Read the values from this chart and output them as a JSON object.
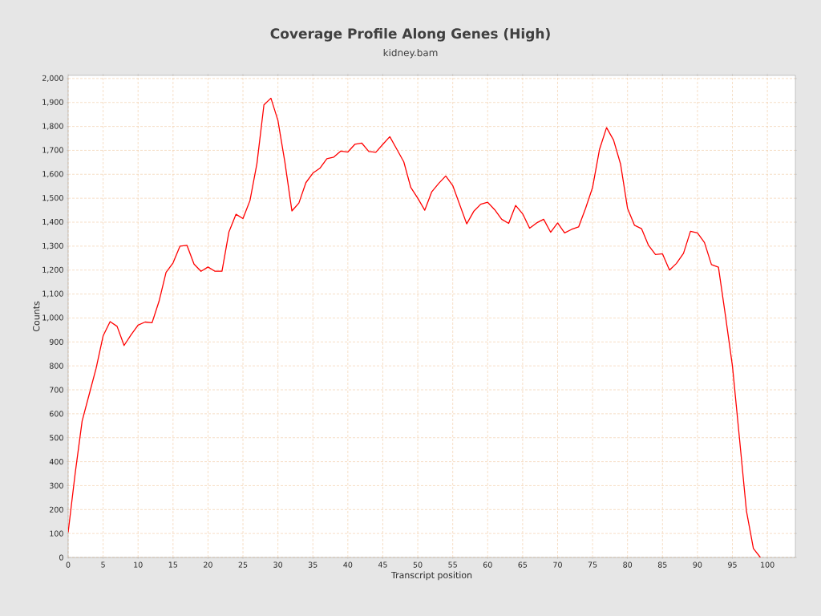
{
  "chart_data": {
    "type": "line",
    "title": "Coverage Profile Along Genes (High)",
    "subtitle": "kidney.bam",
    "xlabel": "Transcript position",
    "ylabel": "Counts",
    "x": [
      0,
      1,
      2,
      3,
      4,
      5,
      6,
      7,
      8,
      9,
      10,
      11,
      12,
      13,
      14,
      15,
      16,
      17,
      18,
      19,
      20,
      21,
      22,
      23,
      24,
      25,
      26,
      27,
      28,
      29,
      30,
      31,
      32,
      33,
      34,
      35,
      36,
      37,
      38,
      39,
      40,
      41,
      42,
      43,
      44,
      45,
      46,
      47,
      48,
      49,
      50,
      51,
      52,
      53,
      54,
      55,
      56,
      57,
      58,
      59,
      60,
      61,
      62,
      63,
      64,
      65,
      66,
      67,
      68,
      69,
      70,
      71,
      72,
      73,
      74,
      75,
      76,
      77,
      78,
      79,
      80,
      81,
      82,
      83,
      84,
      85,
      86,
      87,
      88,
      89,
      90,
      91,
      92,
      93,
      94,
      95,
      96,
      97,
      98,
      99
    ],
    "series": [
      {
        "color": "#ff0000",
        "values": [
          105,
          350,
          570,
          680,
          790,
          925,
          985,
          965,
          885,
          930,
          970,
          983,
          980,
          1070,
          1190,
          1230,
          1300,
          1303,
          1225,
          1195,
          1213,
          1195,
          1195,
          1360,
          1433,
          1415,
          1490,
          1645,
          1890,
          1918,
          1825,
          1650,
          1447,
          1480,
          1565,
          1605,
          1625,
          1665,
          1672,
          1697,
          1693,
          1725,
          1730,
          1695,
          1692,
          1725,
          1757,
          1705,
          1652,
          1545,
          1500,
          1450,
          1527,
          1562,
          1593,
          1553,
          1473,
          1393,
          1445,
          1475,
          1483,
          1452,
          1412,
          1395,
          1470,
          1435,
          1375,
          1397,
          1412,
          1358,
          1397,
          1355,
          1370,
          1380,
          1458,
          1545,
          1705,
          1795,
          1743,
          1643,
          1458,
          1387,
          1373,
          1303,
          1265,
          1268,
          1200,
          1228,
          1270,
          1362,
          1355,
          1315,
          1223,
          1212,
          1010,
          800,
          500,
          195,
          37,
          0
        ]
      }
    ],
    "xlim": [
      0,
      104
    ],
    "ylim": [
      0,
      2013
    ],
    "xticks": [
      0,
      5,
      10,
      15,
      20,
      25,
      30,
      35,
      40,
      45,
      50,
      55,
      60,
      65,
      70,
      75,
      80,
      85,
      90,
      95,
      100
    ],
    "yticks": [
      0,
      100,
      200,
      300,
      400,
      500,
      600,
      700,
      800,
      900,
      {
        "value": 1000,
        "label": "1,000"
      },
      {
        "value": 1100,
        "label": "1,100"
      },
      {
        "value": 1200,
        "label": "1,200"
      },
      {
        "value": 1300,
        "label": "1,300"
      },
      {
        "value": 1400,
        "label": "1,400"
      },
      {
        "value": 1500,
        "label": "1,500"
      },
      {
        "value": 1600,
        "label": "1,600"
      },
      {
        "value": 1700,
        "label": "1,700"
      },
      {
        "value": 1800,
        "label": "1,800"
      },
      {
        "value": 1900,
        "label": "1,900"
      },
      {
        "value": 2000,
        "label": "2,000"
      }
    ],
    "grid": true,
    "marker": "none",
    "line_style": "solid"
  }
}
